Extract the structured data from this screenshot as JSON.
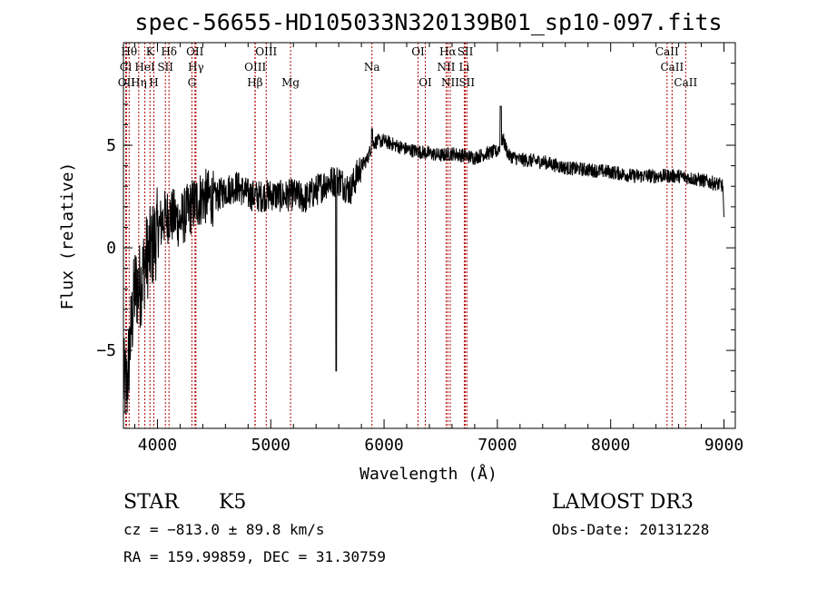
{
  "chart_data": {
    "type": "line",
    "title": "spec-56655-HD105033N320139B01_sp10-097.fits",
    "xlabel": "Wavelength (Å)",
    "ylabel": "Flux (relative)",
    "xlim": [
      3700,
      9100
    ],
    "ylim": [
      -8.8,
      10.0
    ],
    "x_ticks": [
      4000,
      5000,
      6000,
      7000,
      8000,
      9000
    ],
    "x_tick_labels": [
      "4000",
      "5000",
      "6000",
      "7000",
      "8000",
      "9000"
    ],
    "y_ticks": [
      -5,
      0,
      5
    ],
    "y_tick_labels": [
      "−5",
      "0",
      "5"
    ],
    "grid": false,
    "spectrum": {
      "x": [
        3700,
        3730,
        3760,
        3800,
        3850,
        3900,
        3950,
        4000,
        4050,
        4100,
        4150,
        4200,
        4300,
        4400,
        4500,
        4600,
        4700,
        4800,
        4900,
        5000,
        5100,
        5200,
        5300,
        5400,
        5500,
        5600,
        5700,
        5800,
        5850,
        5900,
        5950,
        6000,
        6100,
        6200,
        6300,
        6400,
        6500,
        6600,
        6700,
        6800,
        6900,
        7000,
        7050,
        7100,
        7200,
        7400,
        7600,
        7800,
        8000,
        8200,
        8400,
        8600,
        8800,
        8950,
        9000
      ],
      "y": [
        -6.5,
        -6.8,
        -4.5,
        -2.0,
        -1.8,
        -0.5,
        0.0,
        0.8,
        1.4,
        1.6,
        1.5,
        1.3,
        2.0,
        2.5,
        2.4,
        2.8,
        3.0,
        2.6,
        2.5,
        2.6,
        2.5,
        2.6,
        2.4,
        2.8,
        3.2,
        3.3,
        2.8,
        4.0,
        4.3,
        5.1,
        5.2,
        5.2,
        5.0,
        4.8,
        4.7,
        4.6,
        4.5,
        4.6,
        4.5,
        4.4,
        4.6,
        4.7,
        5.3,
        4.5,
        4.3,
        4.2,
        3.9,
        3.8,
        3.7,
        3.5,
        3.5,
        3.5,
        3.3,
        3.1,
        3.0
      ]
    },
    "spectral_lines": [
      {
        "label": "Hθ",
        "x": 3750,
        "row": 0
      },
      {
        "label": "K",
        "x": 3934,
        "row": 0
      },
      {
        "label": "Hδ",
        "x": 4102,
        "row": 0
      },
      {
        "label": "OII",
        "x": 4331,
        "row": 0
      },
      {
        "label": "OIII",
        "x": 4960,
        "row": 0
      },
      {
        "label": "OI",
        "x": 6300,
        "row": 0
      },
      {
        "label": "Hα",
        "x": 6563,
        "row": 0
      },
      {
        "label": "SII",
        "x": 6717,
        "row": 0
      },
      {
        "label": "CaII",
        "x": 8498,
        "row": 0
      },
      {
        "label": "Gl",
        "x": 3720,
        "row": 1
      },
      {
        "label": "HeI",
        "x": 3889,
        "row": 1
      },
      {
        "label": "SII",
        "x": 4070,
        "row": 1
      },
      {
        "label": "Hγ",
        "x": 4340,
        "row": 1
      },
      {
        "label": "OIII",
        "x": 4863,
        "row": 1
      },
      {
        "label": "Na",
        "x": 5893,
        "row": 1
      },
      {
        "label": "NII",
        "x": 6548,
        "row": 1
      },
      {
        "label": "Li",
        "x": 6708,
        "row": 1
      },
      {
        "label": "CaII",
        "x": 8542,
        "row": 1
      },
      {
        "label": "OII",
        "x": 3727,
        "row": 2
      },
      {
        "label": "Hη",
        "x": 3835,
        "row": 2
      },
      {
        "label": "H",
        "x": 3968,
        "row": 2
      },
      {
        "label": "G",
        "x": 4304,
        "row": 2
      },
      {
        "label": "Hβ",
        "x": 4861,
        "row": 2
      },
      {
        "label": "Mg",
        "x": 5175,
        "row": 2
      },
      {
        "label": "OI",
        "x": 6364,
        "row": 2
      },
      {
        "label": "NII",
        "x": 6584,
        "row": 2
      },
      {
        "label": "SII",
        "x": 6731,
        "row": 2
      },
      {
        "label": "CaII",
        "x": 8662,
        "row": 2
      }
    ]
  },
  "info": {
    "object_type": "STAR",
    "subclass": "K5",
    "survey": "LAMOST DR3",
    "redshift": "cz = −813.0 ± 89.8 km/s",
    "obs_date": "Obs-Date: 20131228",
    "coords": "RA = 159.99859, DEC =  31.30759"
  }
}
